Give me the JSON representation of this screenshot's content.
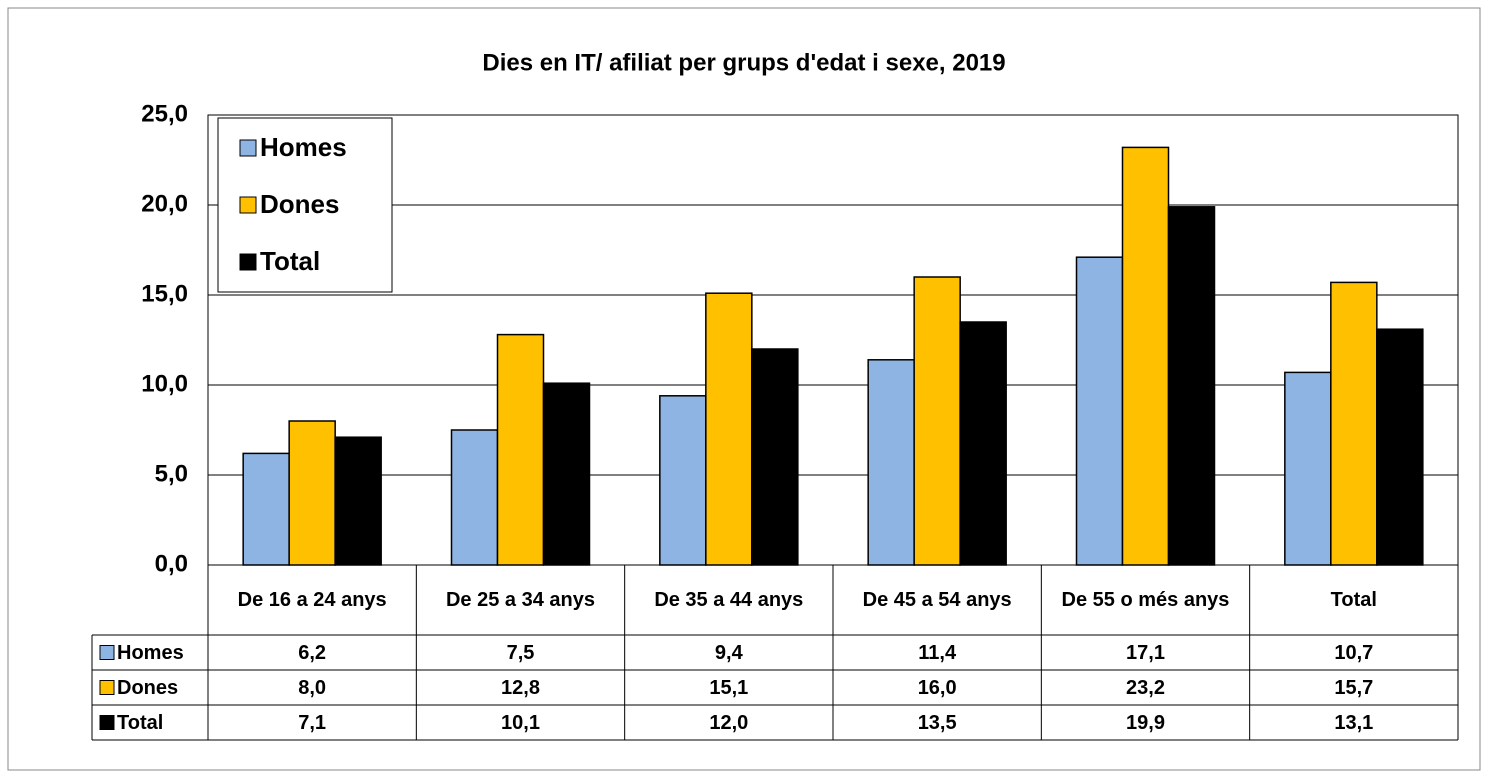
{
  "chart_data": {
    "type": "bar",
    "title": "Dies en IT/ afiliat per grups d'edat i sexe, 2019",
    "categories": [
      "De 16 a 24 anys",
      "De 25 a 34 anys",
      "De 35 a 44 anys",
      "De 45 a 54 anys",
      "De 55 o més anys",
      "Total"
    ],
    "series": [
      {
        "name": "Homes",
        "color": "#8eb4e3",
        "values": [
          6.2,
          7.5,
          9.4,
          11.4,
          17.1,
          10.7
        ],
        "value_labels": [
          "6,2",
          "7,5",
          "9,4",
          "11,4",
          "17,1",
          "10,7"
        ]
      },
      {
        "name": "Dones",
        "color": "#ffc000",
        "values": [
          8.0,
          12.8,
          15.1,
          16.0,
          23.2,
          15.7
        ],
        "value_labels": [
          "8,0",
          "12,8",
          "15,1",
          "16,0",
          "23,2",
          "15,7"
        ]
      },
      {
        "name": "Total",
        "color": "#000000",
        "values": [
          7.1,
          10.1,
          12.0,
          13.5,
          19.9,
          13.1
        ],
        "value_labels": [
          "7,1",
          "10,1",
          "12,0",
          "13,5",
          "19,9",
          "13,1"
        ]
      }
    ],
    "ylim": [
      0,
      25
    ],
    "yticks": [
      {
        "value": 0,
        "label": "0,0"
      },
      {
        "value": 5,
        "label": "5,0"
      },
      {
        "value": 10,
        "label": "10,0"
      },
      {
        "value": 15,
        "label": "15,0"
      },
      {
        "value": 20,
        "label": "20,0"
      },
      {
        "value": 25,
        "label": "25,0"
      }
    ],
    "grid": true,
    "legend": "top-left"
  }
}
